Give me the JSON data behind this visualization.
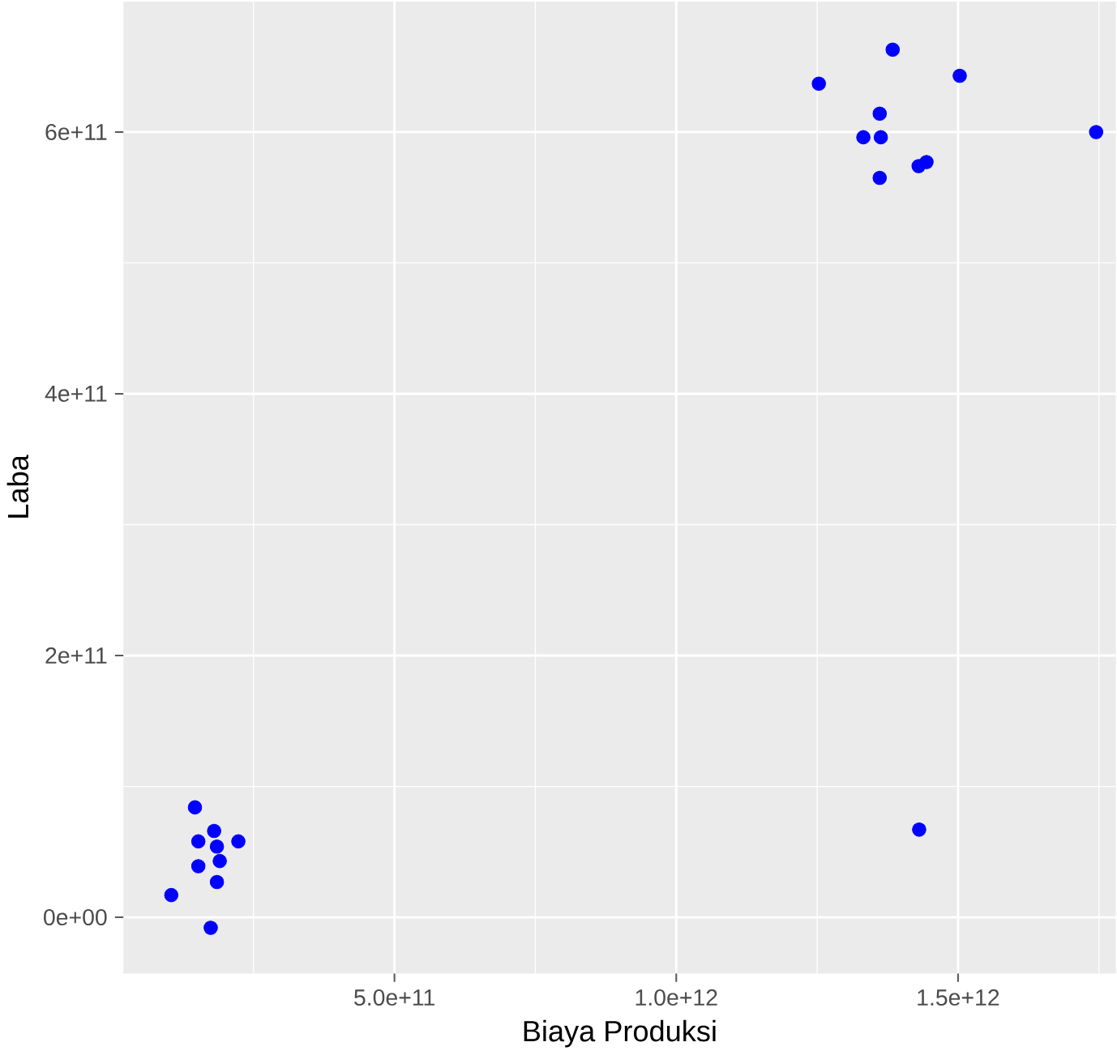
{
  "chart_data": {
    "type": "scatter",
    "xlabel": "Biaya Produksi",
    "ylabel": "Laba",
    "x": [
      146000000000.0,
      180000000000.0,
      152000000000.0,
      223000000000.0,
      185000000000.0,
      190000000000.0,
      152000000000.0,
      185000000000.0,
      104000000000.0,
      174000000000.0,
      1384000000000.0,
      1253000000000.0,
      1503000000000.0,
      1361000000000.0,
      1332000000000.0,
      1363000000000.0,
      1745000000000.0,
      1430000000000.0,
      1444000000000.0,
      1361000000000.0,
      1431000000000.0
    ],
    "values": [
      84000000000.0,
      66000000000.0,
      58000000000.0,
      58000000000.0,
      54000000000.0,
      43000000000.0,
      39000000000.0,
      27000000000.0,
      17000000000.0,
      -8000000000.0,
      663000000000.0,
      637000000000.0,
      643000000000.0,
      614000000000.0,
      596000000000.0,
      596000000000.0,
      600000000000.0,
      574000000000.0,
      577000000000.0,
      565000000000.0,
      67000000000.0
    ],
    "color": "#0000ff",
    "xlim": [
      19000000000.0,
      1780000000000.0
    ],
    "ylim": [
      -43000000000.0,
      700000000000.0
    ],
    "xticks": [
      {
        "value": 500000000000.0,
        "label": "5.0e+11"
      },
      {
        "value": 1000000000000.0,
        "label": "1.0e+12"
      },
      {
        "value": 1500000000000.0,
        "label": "1.5e+12"
      }
    ],
    "yticks": [
      {
        "value": 0,
        "label": "0e+00"
      },
      {
        "value": 200000000000.0,
        "label": "2e+11"
      },
      {
        "value": 400000000000.0,
        "label": "4e+11"
      },
      {
        "value": 600000000000.0,
        "label": "6e+11"
      }
    ],
    "grid": true
  }
}
